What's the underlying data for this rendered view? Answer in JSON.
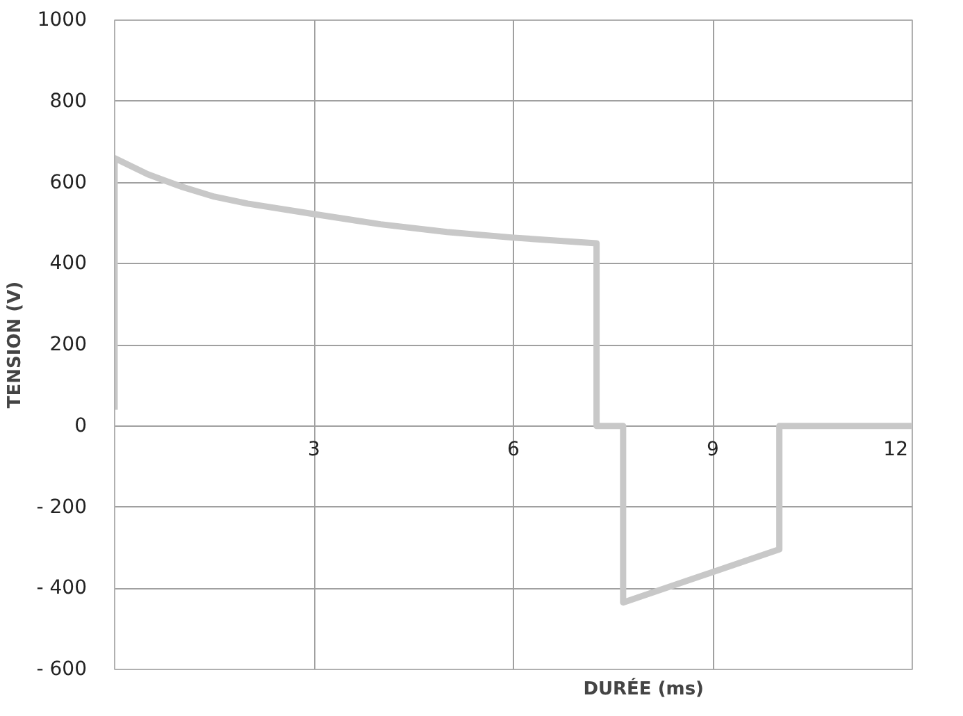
{
  "chart_data": {
    "type": "line",
    "xlabel": "DURÉE (ms)",
    "ylabel": "TENSION (V)",
    "x": [
      0,
      0,
      0.5,
      1,
      1.5,
      2,
      3,
      4,
      5,
      6,
      7.25,
      7.25,
      7.65,
      7.65,
      10,
      10,
      12
    ],
    "series": [
      {
        "color": "#c8c8c8",
        "values": [
          40,
          660,
          620,
          590,
          565,
          548,
          522,
          497,
          478,
          464,
          450,
          0,
          0,
          -435,
          -304,
          0,
          0
        ]
      }
    ],
    "xlim": [
      0,
      12
    ],
    "xticks": [
      3,
      6,
      9,
      12
    ],
    "ylim": [
      -600,
      1000
    ],
    "yticks": [
      {
        "value": -600,
        "label": "- 600"
      },
      {
        "value": -400,
        "label": "- 400"
      },
      {
        "value": -200,
        "label": "- 200"
      },
      0,
      200,
      400,
      600,
      800,
      1000
    ],
    "grid": true,
    "marker": "none",
    "line_style": "solid"
  }
}
